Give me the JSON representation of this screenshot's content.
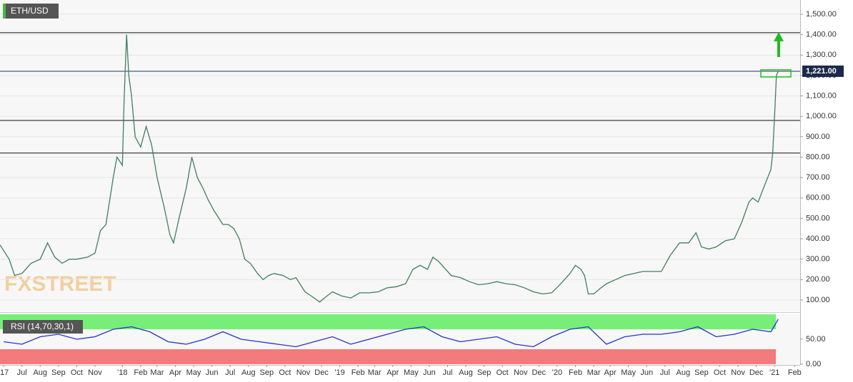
{
  "chart_data": [
    {
      "type": "line",
      "title": "ETH/USD",
      "watermark": "FXSTREET",
      "color": "#3f7f5e",
      "xlim": [
        -0.2,
        43.6
      ],
      "ylim": [
        44,
        1570
      ],
      "grid": true,
      "yticks": [
        {
          "value": 100,
          "label": "100.00"
        },
        {
          "value": 200,
          "label": "200.00"
        },
        {
          "value": 300,
          "label": "300.00"
        },
        {
          "value": 400,
          "label": "400.00"
        },
        {
          "value": 500,
          "label": "500.00"
        },
        {
          "value": 600,
          "label": "600.00"
        },
        {
          "value": 700,
          "label": "700.00"
        },
        {
          "value": 800,
          "label": "800.00"
        },
        {
          "value": 900,
          "label": "900.00"
        },
        {
          "value": 1000,
          "label": "1,000.00"
        },
        {
          "value": 1100,
          "label": "1,100.00"
        },
        {
          "value": 1200,
          "label": "1,200.00"
        },
        {
          "value": 1300,
          "label": "1,300.00"
        },
        {
          "value": 1400,
          "label": "1,400.00"
        },
        {
          "value": 1500,
          "label": "1,500.00"
        }
      ],
      "levels": [
        1410,
        1221,
        980,
        820
      ],
      "price_label": {
        "value": 1221,
        "label": "1,221.00"
      },
      "x": [
        -0.2,
        0.3,
        0.6,
        1.0,
        1.5,
        2.0,
        2.4,
        2.8,
        3.2,
        3.6,
        4.0,
        4.6,
        5.0,
        5.3,
        5.6,
        6.0,
        6.2,
        6.5,
        6.6,
        6.73,
        6.85,
        7.0,
        7.2,
        7.5,
        7.8,
        8.1,
        8.4,
        8.8,
        9.1,
        9.3,
        9.6,
        10.0,
        10.3,
        10.6,
        10.9,
        11.2,
        11.5,
        12.0,
        12.3,
        12.6,
        12.9,
        13.2,
        13.5,
        13.9,
        14.2,
        14.5,
        14.8,
        15.3,
        15.7,
        16.0,
        16.5,
        17.0,
        17.3,
        17.7,
        18.0,
        18.5,
        19.0,
        19.5,
        20.0,
        20.5,
        21.0,
        21.5,
        22.0,
        22.4,
        22.8,
        23.2,
        23.5,
        23.8,
        24.0,
        24.5,
        25.0,
        25.5,
        26.0,
        26.5,
        27.0,
        27.5,
        28.0,
        28.5,
        29.0,
        29.5,
        30.0,
        30.5,
        31.0,
        31.3,
        31.6,
        31.8,
        32.0,
        32.3,
        32.7,
        33.0,
        33.5,
        34.0,
        34.5,
        35.0,
        35.5,
        36.0,
        36.5,
        37.0,
        37.5,
        37.9,
        38.2,
        38.6,
        39.0,
        39.5,
        40.0,
        40.4,
        40.8,
        41.0,
        41.3,
        41.6,
        42.0,
        42.1,
        42.2,
        42.3,
        42.4
      ],
      "values": [
        370,
        300,
        220,
        230,
        280,
        300,
        380,
        310,
        280,
        300,
        300,
        310,
        330,
        440,
        470,
        700,
        800,
        760,
        1100,
        1400,
        1200,
        1100,
        900,
        850,
        950,
        860,
        700,
        550,
        420,
        380,
        500,
        650,
        800,
        700,
        650,
        590,
        540,
        470,
        470,
        450,
        400,
        300,
        280,
        230,
        200,
        220,
        230,
        220,
        200,
        210,
        140,
        110,
        90,
        120,
        140,
        120,
        110,
        135,
        135,
        140,
        160,
        165,
        180,
        250,
        270,
        250,
        310,
        290,
        270,
        220,
        210,
        190,
        175,
        180,
        190,
        180,
        175,
        160,
        140,
        130,
        135,
        180,
        230,
        270,
        250,
        220,
        130,
        130,
        160,
        180,
        200,
        220,
        230,
        240,
        240,
        240,
        320,
        380,
        380,
        430,
        360,
        350,
        360,
        390,
        400,
        480,
        580,
        600,
        580,
        650,
        740,
        820,
        1000,
        1200,
        1221
      ]
    },
    {
      "type": "line",
      "title": "RSI (14,70,30,1)",
      "color": "#2233cc",
      "xlim": [
        -0.2,
        43.6
      ],
      "ylim": [
        0,
        100
      ],
      "bands": [
        {
          "from": 70,
          "to": 100,
          "color": "#77ee77"
        },
        {
          "from": 0,
          "to": 30,
          "color": "#f47b7b"
        }
      ],
      "yticks": [
        {
          "value": 50,
          "label": "50.00"
        },
        {
          "value": 0,
          "label": "0.00"
        }
      ],
      "xticks": [
        {
          "value": 0,
          "label": "'17"
        },
        {
          "value": 1,
          "label": "Jul"
        },
        {
          "value": 2,
          "label": "Aug"
        },
        {
          "value": 3,
          "label": "Sep"
        },
        {
          "value": 4,
          "label": "Oct"
        },
        {
          "value": 5,
          "label": "Nov"
        },
        {
          "value": 6.5,
          "label": "'18"
        },
        {
          "value": 7.5,
          "label": "Feb"
        },
        {
          "value": 8.4,
          "label": "Mar"
        },
        {
          "value": 9.4,
          "label": "Apr"
        },
        {
          "value": 10.4,
          "label": "May"
        },
        {
          "value": 11.4,
          "label": "Jun"
        },
        {
          "value": 12.4,
          "label": "Jul"
        },
        {
          "value": 13.4,
          "label": "Aug"
        },
        {
          "value": 14.4,
          "label": "Sep"
        },
        {
          "value": 15.4,
          "label": "Oct"
        },
        {
          "value": 16.4,
          "label": "Nov"
        },
        {
          "value": 17.4,
          "label": "Dec"
        },
        {
          "value": 18.4,
          "label": "'19"
        },
        {
          "value": 19.4,
          "label": "Feb"
        },
        {
          "value": 20.3,
          "label": "Mar"
        },
        {
          "value": 21.3,
          "label": "Apr"
        },
        {
          "value": 22.3,
          "label": "May"
        },
        {
          "value": 23.3,
          "label": "Jun"
        },
        {
          "value": 24.3,
          "label": "Jul"
        },
        {
          "value": 25.3,
          "label": "Aug"
        },
        {
          "value": 26.3,
          "label": "Sep"
        },
        {
          "value": 27.3,
          "label": "Oct"
        },
        {
          "value": 28.3,
          "label": "Nov"
        },
        {
          "value": 29.3,
          "label": "Dec"
        },
        {
          "value": 30.3,
          "label": "'20"
        },
        {
          "value": 31.3,
          "label": "Feb"
        },
        {
          "value": 32.3,
          "label": "Mar"
        },
        {
          "value": 33.2,
          "label": "Apr"
        },
        {
          "value": 34.2,
          "label": "May"
        },
        {
          "value": 35.2,
          "label": "Jun"
        },
        {
          "value": 36.2,
          "label": "Jul"
        },
        {
          "value": 37.2,
          "label": "Aug"
        },
        {
          "value": 38.2,
          "label": "Sep"
        },
        {
          "value": 39.2,
          "label": "Oct"
        },
        {
          "value": 40.2,
          "label": "Nov"
        },
        {
          "value": 41.2,
          "label": "Dec"
        },
        {
          "value": 42.2,
          "label": "'21"
        },
        {
          "value": 43.3,
          "label": "Feb"
        }
      ],
      "x": [
        0,
        1,
        2,
        3,
        4,
        5,
        6,
        7,
        8,
        9,
        10,
        11,
        12,
        13,
        14,
        15,
        16,
        17,
        18,
        19,
        20,
        21,
        22,
        23,
        24,
        25,
        26,
        27,
        28,
        29,
        30,
        31,
        32,
        33,
        34,
        35,
        36,
        37,
        38,
        39,
        40,
        41,
        42,
        42.4
      ],
      "values": [
        45,
        40,
        55,
        60,
        50,
        55,
        70,
        75,
        65,
        45,
        40,
        50,
        65,
        50,
        45,
        40,
        35,
        45,
        55,
        40,
        50,
        60,
        70,
        75,
        55,
        45,
        50,
        55,
        40,
        35,
        55,
        70,
        75,
        40,
        55,
        60,
        60,
        65,
        75,
        55,
        60,
        70,
        65,
        90
      ]
    }
  ]
}
